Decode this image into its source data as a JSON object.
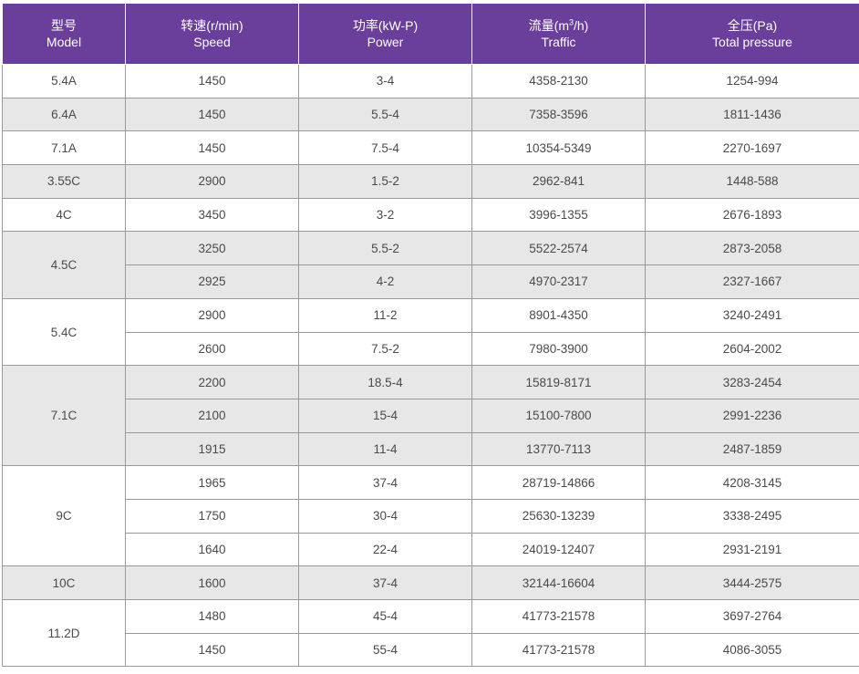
{
  "headers": [
    {
      "zh": "型号",
      "en": "Model",
      "sup": ""
    },
    {
      "zh": "转速(r/min)",
      "en": "Speed",
      "sup": ""
    },
    {
      "zh": "功率(kW-P)",
      "en": "Power",
      "sup": ""
    },
    {
      "zh_pre": "流量(m",
      "sup": "3",
      "zh_post": "/h)",
      "en": "Traffic"
    },
    {
      "zh": "全压(Pa)",
      "en": "Total pressure",
      "sup": ""
    }
  ],
  "groups": [
    {
      "model": "5.4A",
      "shade": false,
      "rows": [
        [
          "1450",
          "3-4",
          "4358-2130",
          "1254-994"
        ]
      ]
    },
    {
      "model": "6.4A",
      "shade": true,
      "rows": [
        [
          "1450",
          "5.5-4",
          "7358-3596",
          "1811-1436"
        ]
      ]
    },
    {
      "model": "7.1A",
      "shade": false,
      "rows": [
        [
          "1450",
          "7.5-4",
          "10354-5349",
          "2270-1697"
        ]
      ]
    },
    {
      "model": "3.55C",
      "shade": true,
      "rows": [
        [
          "2900",
          "1.5-2",
          "2962-841",
          "1448-588"
        ]
      ]
    },
    {
      "model": "4C",
      "shade": false,
      "rows": [
        [
          "3450",
          "3-2",
          "3996-1355",
          "2676-1893"
        ]
      ]
    },
    {
      "model": "4.5C",
      "shade": true,
      "rows": [
        [
          "3250",
          "5.5-2",
          "5522-2574",
          "2873-2058"
        ],
        [
          "2925",
          "4-2",
          "4970-2317",
          "2327-1667"
        ]
      ]
    },
    {
      "model": "5.4C",
      "shade": false,
      "rows": [
        [
          "2900",
          "11-2",
          "8901-4350",
          "3240-2491"
        ],
        [
          "2600",
          "7.5-2",
          "7980-3900",
          "2604-2002"
        ]
      ]
    },
    {
      "model": "7.1C",
      "shade": true,
      "rows": [
        [
          "2200",
          "18.5-4",
          "15819-8171",
          "3283-2454"
        ],
        [
          "2100",
          "15-4",
          "15100-7800",
          "2991-2236"
        ],
        [
          "1915",
          "11-4",
          "13770-7113",
          "2487-1859"
        ]
      ]
    },
    {
      "model": "9C",
      "shade": false,
      "rows": [
        [
          "1965",
          "37-4",
          "28719-14866",
          "4208-3145"
        ],
        [
          "1750",
          "30-4",
          "25630-13239",
          "3338-2495"
        ],
        [
          "1640",
          "22-4",
          "24019-12407",
          "2931-2191"
        ]
      ]
    },
    {
      "model": "10C",
      "shade": true,
      "rows": [
        [
          "1600",
          "37-4",
          "32144-16604",
          "3444-2575"
        ]
      ]
    },
    {
      "model": "11.2D",
      "shade": false,
      "rows": [
        [
          "1480",
          "45-4",
          "41773-21578",
          "3697-2764"
        ],
        [
          "1450",
          "55-4",
          "41773-21578",
          "4086-3055"
        ]
      ]
    }
  ],
  "colors": {
    "header_bg": "#6a3f9c",
    "shade_bg": "#e7e7e7",
    "border": "#9a9a9a"
  }
}
